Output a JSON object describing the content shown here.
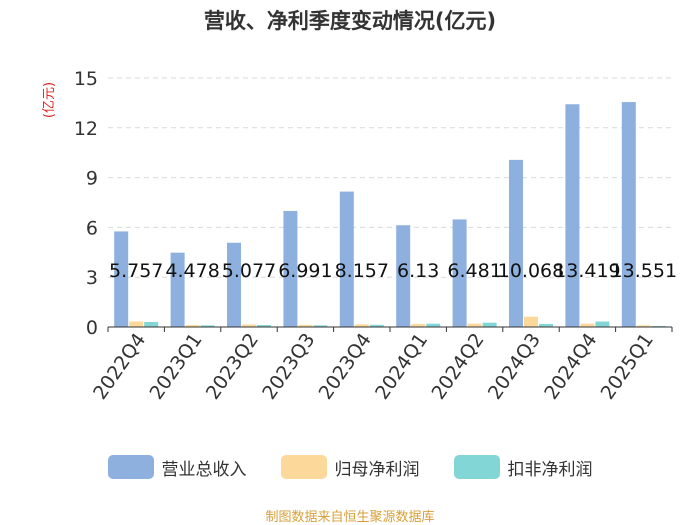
{
  "chart_data": {
    "type": "bar",
    "title": "营收、净利季度变动情况(亿元)",
    "ylabel": "(亿元)",
    "ylim": [
      0,
      15
    ],
    "yticks": [
      0,
      3,
      6,
      9,
      12,
      15
    ],
    "categories": [
      "2022Q4",
      "2023Q1",
      "2023Q2",
      "2023Q3",
      "2023Q4",
      "2024Q1",
      "2024Q2",
      "2024Q3",
      "2024Q4",
      "2025Q1"
    ],
    "series": [
      {
        "name": "营业总收入",
        "color": "#8eb0de",
        "values": [
          5.757,
          4.478,
          5.077,
          6.991,
          8.157,
          6.13,
          6.481,
          10.068,
          13.419,
          13.551
        ],
        "labels": [
          "5.757",
          "4.478",
          "5.077",
          "6.991",
          "8.157",
          "6.13",
          "6.481",
          "10.068",
          "13.419",
          "13.551"
        ]
      },
      {
        "name": "归母净利润",
        "color": "#fcd89a",
        "values": [
          0.33,
          0.12,
          0.15,
          0.13,
          0.16,
          0.18,
          0.2,
          0.62,
          0.2,
          0.1
        ]
      },
      {
        "name": "扣非净利润",
        "color": "#82d6d6",
        "values": [
          0.3,
          0.1,
          0.12,
          0.1,
          0.13,
          0.2,
          0.26,
          0.18,
          0.33,
          0.06
        ]
      }
    ],
    "legend": "bottom",
    "grid": true
  },
  "footer": "制图数据来自恒生聚源数据库"
}
